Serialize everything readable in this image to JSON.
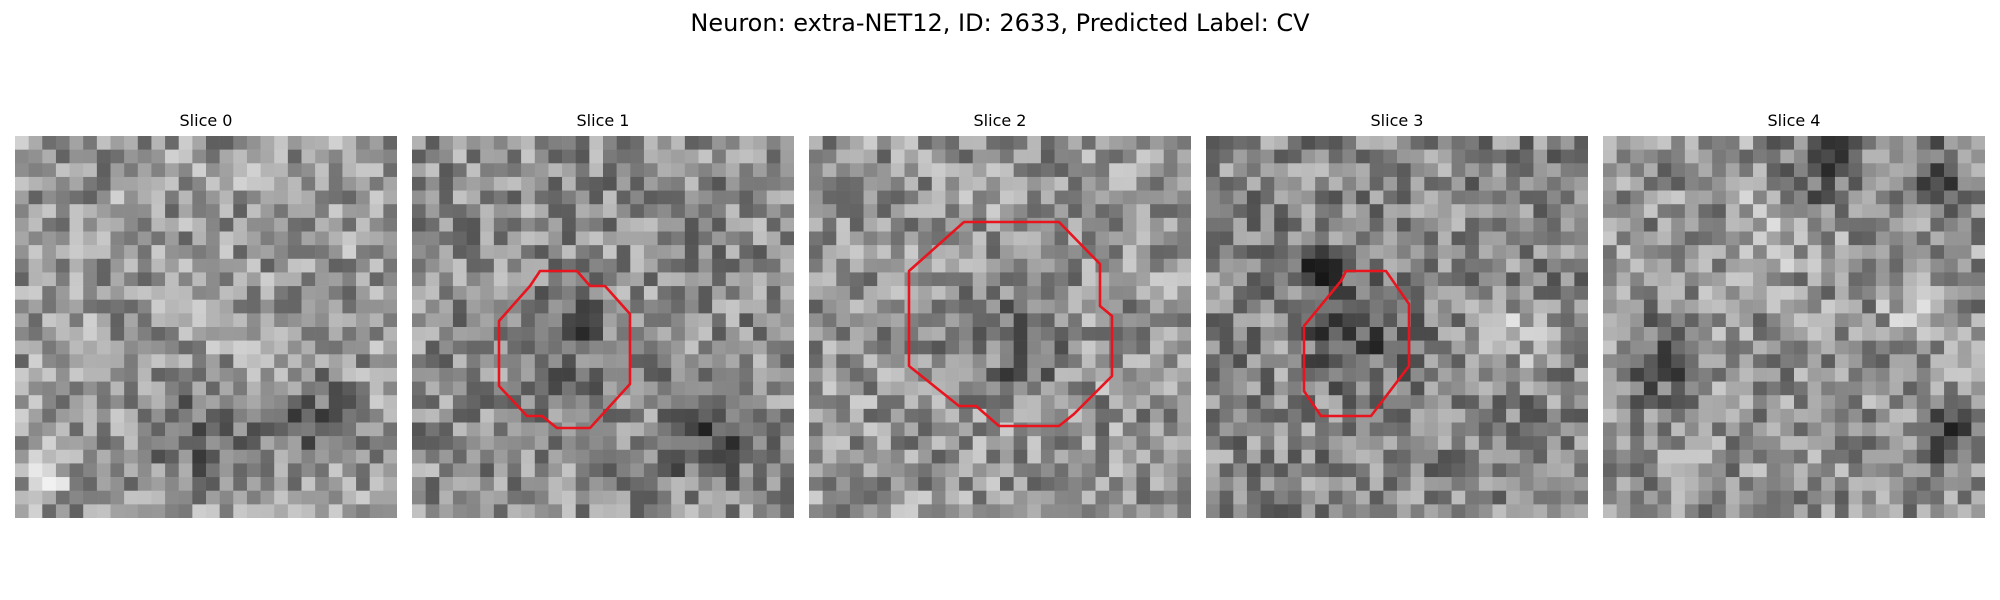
{
  "figure": {
    "title": "Neuron: extra-NET12, ID: 2633, Predicted Label: CV"
  },
  "panels": [
    {
      "title": "Slice 0",
      "has_outline": false,
      "seed": 11,
      "darkness_level": 0.15
    },
    {
      "title": "Slice 1",
      "has_outline": true,
      "seed": 23,
      "darkness_level": 0.45
    },
    {
      "title": "Slice 2",
      "has_outline": true,
      "seed": 37,
      "darkness_level": 0.25
    },
    {
      "title": "Slice 3",
      "has_outline": true,
      "seed": 41,
      "darkness_level": 0.6
    },
    {
      "title": "Slice 4",
      "has_outline": false,
      "seed": 53,
      "darkness_level": 0.3
    }
  ],
  "colors": {
    "outline": "#e8141e",
    "background": "#ffffff"
  }
}
